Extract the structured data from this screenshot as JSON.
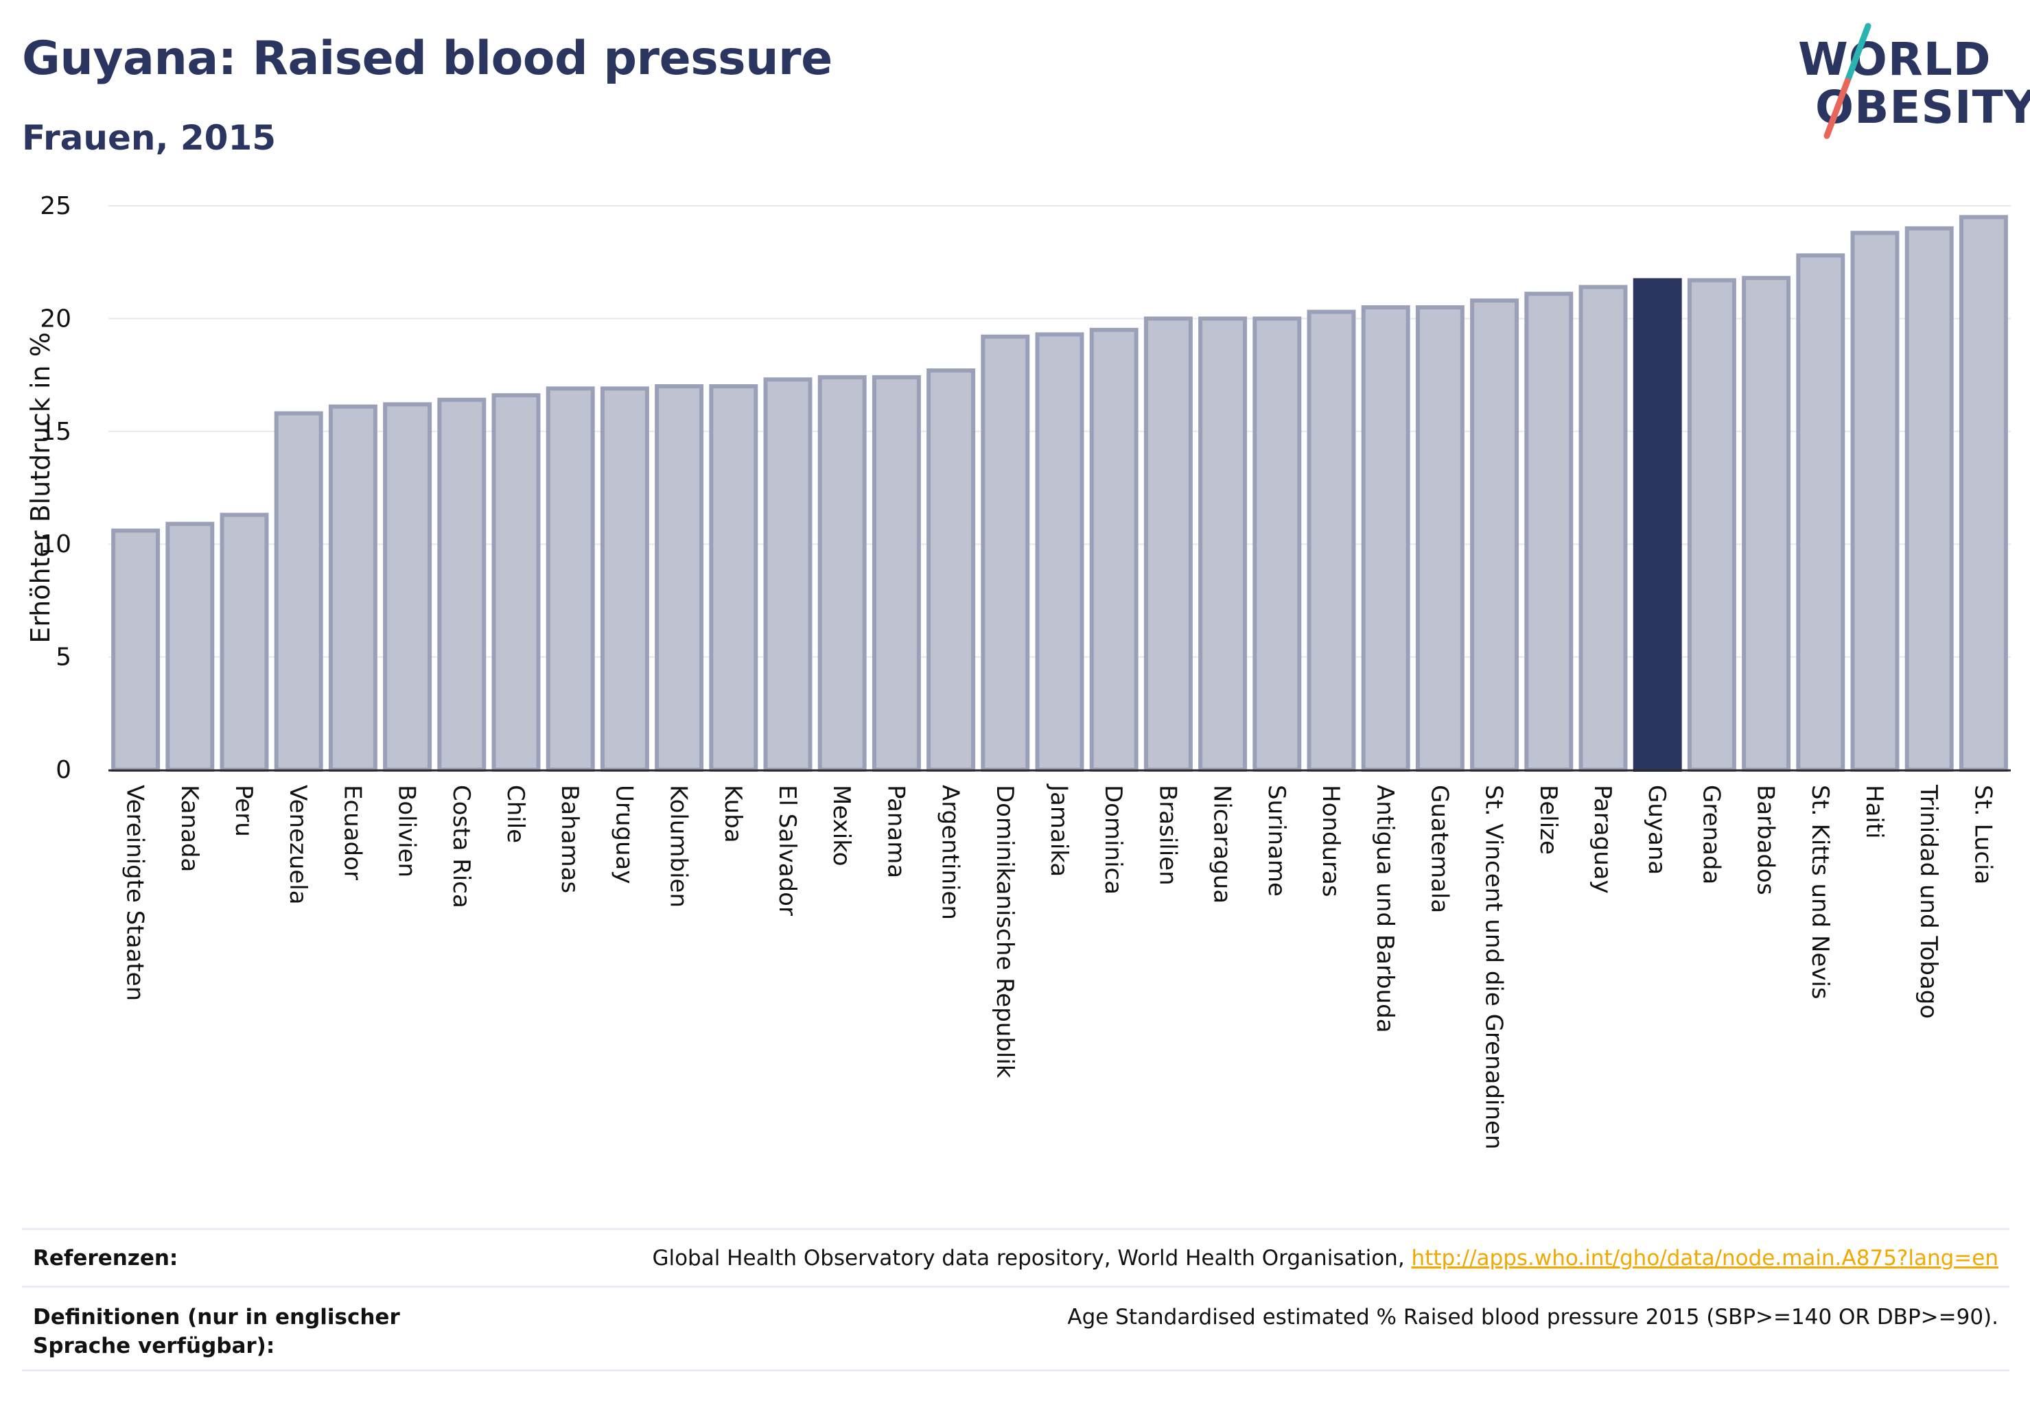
{
  "header": {
    "title": "Guyana: Raised blood pressure",
    "subtitle": "Frauen, 2015"
  },
  "logo": {
    "line1": "WORLD",
    "line2": "OBESITY",
    "accent_colors": [
      "#2bb3b1",
      "#e8675a"
    ]
  },
  "colors": {
    "bar_fill": "#bfc3d1",
    "bar_stroke": "#9aa0b8",
    "highlight": "#2a3560",
    "grid": "#e6e8ef",
    "link": "#f2a800"
  },
  "chart_data": {
    "type": "bar",
    "title": "",
    "xlabel": "",
    "ylabel": "Erhöhter Blutdruck in %",
    "ylim": [
      0,
      25
    ],
    "yticks": [
      0,
      5,
      10,
      15,
      20,
      25
    ],
    "grid": true,
    "highlight": "Guyana",
    "categories": [
      "Vereinigte Staaten",
      "Kanada",
      "Peru",
      "Venezuela",
      "Ecuador",
      "Bolivien",
      "Costa Rica",
      "Chile",
      "Bahamas",
      "Uruguay",
      "Kolumbien",
      "Kuba",
      "El Salvador",
      "Mexiko",
      "Panama",
      "Argentinien",
      "Dominikanische Republik",
      "Jamaika",
      "Dominica",
      "Brasilien",
      "Nicaragua",
      "Suriname",
      "Honduras",
      "Antigua und Barbuda",
      "Guatemala",
      "St. Vincent und die Grenadinen",
      "Belize",
      "Paraguay",
      "Guyana",
      "Grenada",
      "Barbados",
      "St. Kitts und Nevis",
      "Haiti",
      "Trinidad und Tobago",
      "St. Lucia"
    ],
    "values": [
      10.6,
      10.9,
      11.3,
      15.8,
      16.1,
      16.2,
      16.4,
      16.6,
      16.9,
      16.9,
      17.0,
      17.0,
      17.3,
      17.4,
      17.4,
      17.7,
      19.2,
      19.3,
      19.5,
      20.0,
      20.0,
      20.0,
      20.3,
      20.5,
      20.5,
      20.8,
      21.1,
      21.4,
      21.7,
      21.7,
      21.8,
      22.8,
      23.8,
      24.0,
      24.5
    ]
  },
  "footer": {
    "references_label": "Referenzen:",
    "references_text": "Global Health Observatory data repository, World Health Organisation, ",
    "references_link": "http://apps.who.int/gho/data/node.main.A875?lang=en",
    "definitions_label": "Definitionen (nur in englischer Sprache verfügbar):",
    "definitions_text": "Age Standardised estimated % Raised blood pressure 2015 (SBP>=140 OR DBP>=90)."
  }
}
